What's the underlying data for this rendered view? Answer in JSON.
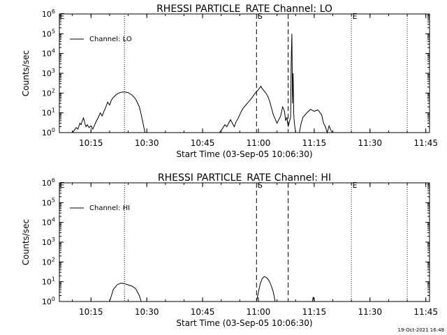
{
  "footer": {
    "timestamp": "19-Oct-2021 16:48"
  },
  "chart_data": [
    {
      "type": "line",
      "title": "RHESSI PARTICLE_RATE Channel: LO",
      "xlabel": "Start Time (03-Sep-05 10:06:30)",
      "ylabel": "Counts/sec",
      "yscale": "log",
      "ylim": [
        1,
        1000000
      ],
      "xlim": [
        "10:06:30",
        "11:46:00"
      ],
      "x_ticks": [
        "10:15",
        "10:30",
        "10:45",
        "11:00",
        "11:15",
        "11:30",
        "11:45"
      ],
      "y_ticks": [
        {
          "base": "10",
          "exp": "0"
        },
        {
          "base": "10",
          "exp": "1"
        },
        {
          "base": "10",
          "exp": "2"
        },
        {
          "base": "10",
          "exp": "3"
        },
        {
          "base": "10",
          "exp": "4"
        },
        {
          "base": "10",
          "exp": "5"
        },
        {
          "base": "10",
          "exp": "6"
        }
      ],
      "legend": {
        "position": "top-left",
        "label": "Channel: LO"
      },
      "markers": [
        {
          "label": "S",
          "time": "10:59:30",
          "style": "dashed"
        },
        {
          "label": "E",
          "time": "11:25:00",
          "style": "dotted"
        }
      ],
      "vlines": [
        {
          "time": "10:24:00",
          "style": "dotted"
        },
        {
          "time": "11:08:00",
          "style": "dashed"
        },
        {
          "time": "11:40:00",
          "style": "dotted"
        }
      ],
      "series": [
        {
          "name": "Channel: LO",
          "points": [
            [
              "10:10:00",
              1.0
            ],
            [
              "10:10:30",
              1.3
            ],
            [
              "10:11:00",
              1.8
            ],
            [
              "10:11:30",
              1.5
            ],
            [
              "10:12:00",
              3.0
            ],
            [
              "10:12:20",
              2.5
            ],
            [
              "10:12:40",
              4.0
            ],
            [
              "10:13:00",
              5.5
            ],
            [
              "10:13:20",
              3.0
            ],
            [
              "10:13:40",
              2.0
            ],
            [
              "10:14:00",
              2.5
            ],
            [
              "10:14:30",
              1.8
            ],
            [
              "10:15:00",
              2.2
            ],
            [
              "10:15:30",
              1.5
            ],
            [
              "10:16:00",
              2.5
            ],
            [
              "10:16:30",
              4.0
            ],
            [
              "10:17:00",
              6.0
            ],
            [
              "10:17:30",
              10
            ],
            [
              "10:18:00",
              7.0
            ],
            [
              "10:18:30",
              12
            ],
            [
              "10:19:00",
              20
            ],
            [
              "10:19:30",
              35
            ],
            [
              "10:20:00",
              25
            ],
            [
              "10:20:30",
              45
            ],
            [
              "10:21:00",
              60
            ],
            [
              "10:22:00",
              90
            ],
            [
              "10:23:00",
              110
            ],
            [
              "10:24:00",
              115
            ],
            [
              "10:25:00",
              105
            ],
            [
              "10:26:00",
              80
            ],
            [
              "10:27:00",
              50
            ],
            [
              "10:28:00",
              20
            ],
            [
              "10:28:30",
              8.0
            ],
            [
              "10:29:00",
              3.0
            ],
            [
              "10:29:30",
              1.0
            ],
            [
              "10:49:30",
              1.0
            ],
            [
              "10:50:00",
              1.3
            ],
            [
              "10:50:30",
              1.8
            ],
            [
              "10:51:00",
              2.5
            ],
            [
              "10:51:30",
              2.0
            ],
            [
              "10:52:00",
              3.0
            ],
            [
              "10:52:30",
              4.5
            ],
            [
              "10:53:00",
              3.0
            ],
            [
              "10:53:30",
              2.0
            ],
            [
              "10:54:00",
              3.5
            ],
            [
              "10:54:30",
              5.0
            ],
            [
              "10:55:00",
              8.0
            ],
            [
              "10:55:30",
              13
            ],
            [
              "10:56:00",
              18
            ],
            [
              "10:57:00",
              30
            ],
            [
              "10:58:00",
              50
            ],
            [
              "10:59:00",
              90
            ],
            [
              "11:00:00",
              150
            ],
            [
              "11:00:40",
              220
            ],
            [
              "11:01:00",
              170
            ],
            [
              "11:01:30",
              130
            ],
            [
              "11:02:00",
              100
            ],
            [
              "11:02:30",
              70
            ],
            [
              "11:03:00",
              40
            ],
            [
              "11:03:30",
              18
            ],
            [
              "11:04:00",
              8.0
            ],
            [
              "11:04:30",
              5.0
            ],
            [
              "11:05:00",
              3.0
            ],
            [
              "11:06:00",
              7.0
            ],
            [
              "11:06:30",
              20
            ],
            [
              "11:07:00",
              12
            ],
            [
              "11:07:20",
              4.0
            ],
            [
              "11:07:40",
              6.0
            ],
            [
              "11:08:00",
              2.0
            ],
            [
              "11:08:20",
              3.5
            ],
            [
              "11:08:40",
              6.0
            ],
            [
              "11:08:50",
              5000
            ],
            [
              "11:09:00",
              100000
            ],
            [
              "11:09:10",
              30
            ],
            [
              "11:09:20",
              1000
            ],
            [
              "11:09:30",
              8.0
            ],
            [
              "11:09:40",
              3.0
            ],
            [
              "11:10:00",
              1.0
            ],
            [
              "11:11:00",
              1.0
            ],
            [
              "11:11:30",
              3.0
            ],
            [
              "11:12:00",
              6.0
            ],
            [
              "11:13:00",
              10
            ],
            [
              "11:14:00",
              15
            ],
            [
              "11:15:00",
              12
            ],
            [
              "11:16:00",
              14
            ],
            [
              "11:17:00",
              8.0
            ],
            [
              "11:17:30",
              3.0
            ],
            [
              "11:18:00",
              2.0
            ],
            [
              "11:18:30",
              1.0
            ],
            [
              "11:19:00",
              2.2
            ],
            [
              "11:19:30",
              1.3
            ],
            [
              "11:20:00",
              1.0
            ]
          ]
        }
      ]
    },
    {
      "type": "line",
      "title": "RHESSI PARTICLE_RATE Channel: HI",
      "xlabel": "Start Time (03-Sep-05 10:06:30)",
      "ylabel": "Counts/sec",
      "yscale": "log",
      "ylim": [
        1,
        1000000
      ],
      "xlim": [
        "10:06:30",
        "11:46:00"
      ],
      "x_ticks": [
        "10:15",
        "10:30",
        "10:45",
        "11:00",
        "11:15",
        "11:30",
        "11:45"
      ],
      "y_ticks": [
        {
          "base": "10",
          "exp": "0"
        },
        {
          "base": "10",
          "exp": "1"
        },
        {
          "base": "10",
          "exp": "2"
        },
        {
          "base": "10",
          "exp": "3"
        },
        {
          "base": "10",
          "exp": "4"
        },
        {
          "base": "10",
          "exp": "5"
        },
        {
          "base": "10",
          "exp": "6"
        }
      ],
      "legend": {
        "position": "top-left",
        "label": "Channel: HI"
      },
      "markers": [
        {
          "label": "S",
          "time": "10:59:30",
          "style": "dashed"
        },
        {
          "label": "E",
          "time": "11:25:00",
          "style": "dotted"
        }
      ],
      "vlines": [
        {
          "time": "10:24:00",
          "style": "dotted"
        },
        {
          "time": "11:08:00",
          "style": "dashed"
        },
        {
          "time": "11:40:00",
          "style": "dotted"
        }
      ],
      "series": [
        {
          "name": "Channel: HI",
          "points": [
            [
              "10:20:00",
              1.0
            ],
            [
              "10:20:30",
              2.0
            ],
            [
              "10:21:00",
              4.0
            ],
            [
              "10:22:00",
              7.0
            ],
            [
              "10:23:00",
              8.5
            ],
            [
              "10:24:00",
              8.0
            ],
            [
              "10:25:00",
              7.0
            ],
            [
              "10:26:00",
              6.0
            ],
            [
              "10:27:00",
              4.5
            ],
            [
              "10:27:30",
              3.0
            ],
            [
              "10:28:00",
              2.0
            ],
            [
              "10:28:30",
              1.0
            ],
            [
              "10:59:30",
              1.0
            ],
            [
              "11:00:00",
              3.0
            ],
            [
              "11:00:30",
              8.0
            ],
            [
              "11:01:00",
              14
            ],
            [
              "11:01:30",
              18
            ],
            [
              "11:02:00",
              17
            ],
            [
              "11:02:30",
              14
            ],
            [
              "11:03:00",
              10
            ],
            [
              "11:03:30",
              6.0
            ],
            [
              "11:04:00",
              3.0
            ],
            [
              "11:04:30",
              1.0
            ],
            [
              "11:14:30",
              1.0
            ],
            [
              "11:14:45",
              1.7
            ],
            [
              "11:15:00",
              1.0
            ]
          ]
        }
      ]
    }
  ]
}
